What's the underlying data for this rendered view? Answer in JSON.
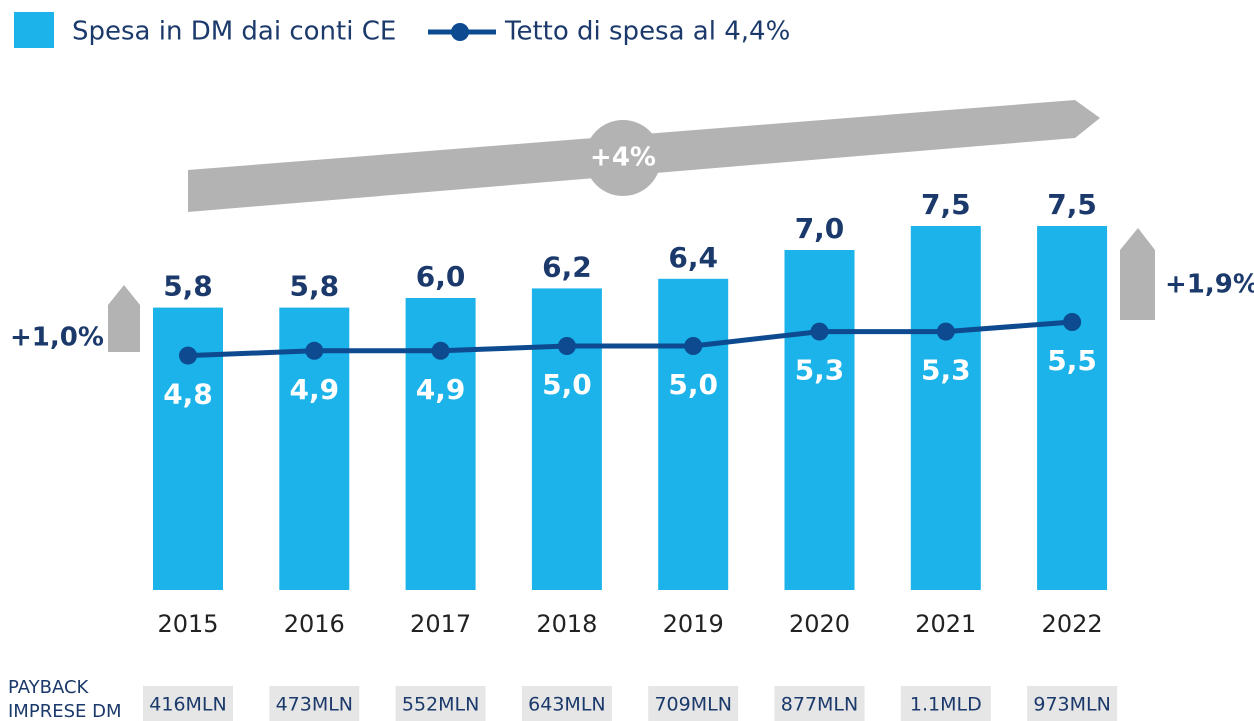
{
  "chart_data": {
    "type": "bar",
    "categories": [
      "2015",
      "2016",
      "2017",
      "2018",
      "2019",
      "2020",
      "2021",
      "2022"
    ],
    "series": [
      {
        "name": "Spesa in DM dai conti CE",
        "color": "#1bb3ea",
        "type": "bar",
        "values": [
          5.8,
          5.8,
          6.0,
          6.2,
          6.4,
          7.0,
          7.5,
          7.5
        ],
        "value_labels": [
          "5,8",
          "5,8",
          "6,0",
          "6,2",
          "6,4",
          "7,0",
          "7,5",
          "7,5"
        ]
      },
      {
        "name": "Tetto di spesa al 4,4%",
        "color": "#0d4a8f",
        "type": "line",
        "values": [
          4.8,
          4.9,
          4.9,
          5.0,
          5.0,
          5.3,
          5.3,
          5.5
        ],
        "value_labels": [
          "4,8",
          "4,9",
          "4,9",
          "5,0",
          "5,0",
          "5,3",
          "5,3",
          "5,5"
        ]
      }
    ],
    "annotations": [
      "+4%",
      "+1,0%",
      "+1,9%"
    ],
    "payback": {
      "label": [
        "PAYBACK",
        "IMPRESE DM"
      ],
      "values": [
        "416MLN",
        "473MLN",
        "552MLN",
        "643MLN",
        "709MLN",
        "877MLN",
        "1.1MLD",
        "973MLN"
      ]
    }
  }
}
